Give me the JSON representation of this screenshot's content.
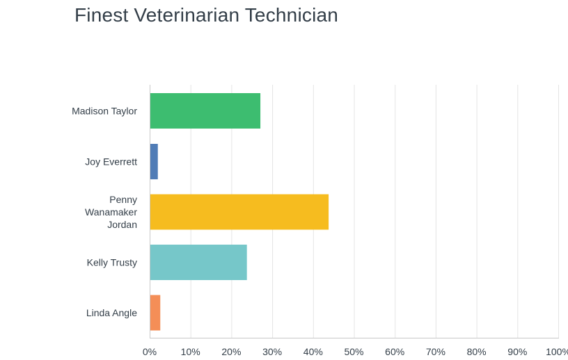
{
  "chart_data": {
    "type": "bar",
    "orientation": "horizontal",
    "title": "Finest Veterinarian Technician",
    "xlabel": "",
    "ylabel": "",
    "categories": [
      [
        "Madison Taylor"
      ],
      [
        "Joy Everrett"
      ],
      [
        "Penny",
        "Wanamaker",
        "Jordan"
      ],
      [
        "Kelly Trusty"
      ],
      [
        "Linda Angle"
      ]
    ],
    "values": [
      27.1,
      2.0,
      43.8,
      23.8,
      2.6
    ],
    "colors": [
      "#3dbd70",
      "#507cb6",
      "#f6bc1f",
      "#76c7c9",
      "#f48e57"
    ],
    "xlim": [
      0,
      100
    ],
    "xticks": [
      0,
      10,
      20,
      30,
      40,
      50,
      60,
      70,
      80,
      90,
      100
    ],
    "xtick_labels": [
      "0%",
      "10%",
      "20%",
      "30%",
      "40%",
      "50%",
      "60%",
      "70%",
      "80%",
      "90%",
      "100%"
    ],
    "grid": true,
    "legend": "none"
  }
}
